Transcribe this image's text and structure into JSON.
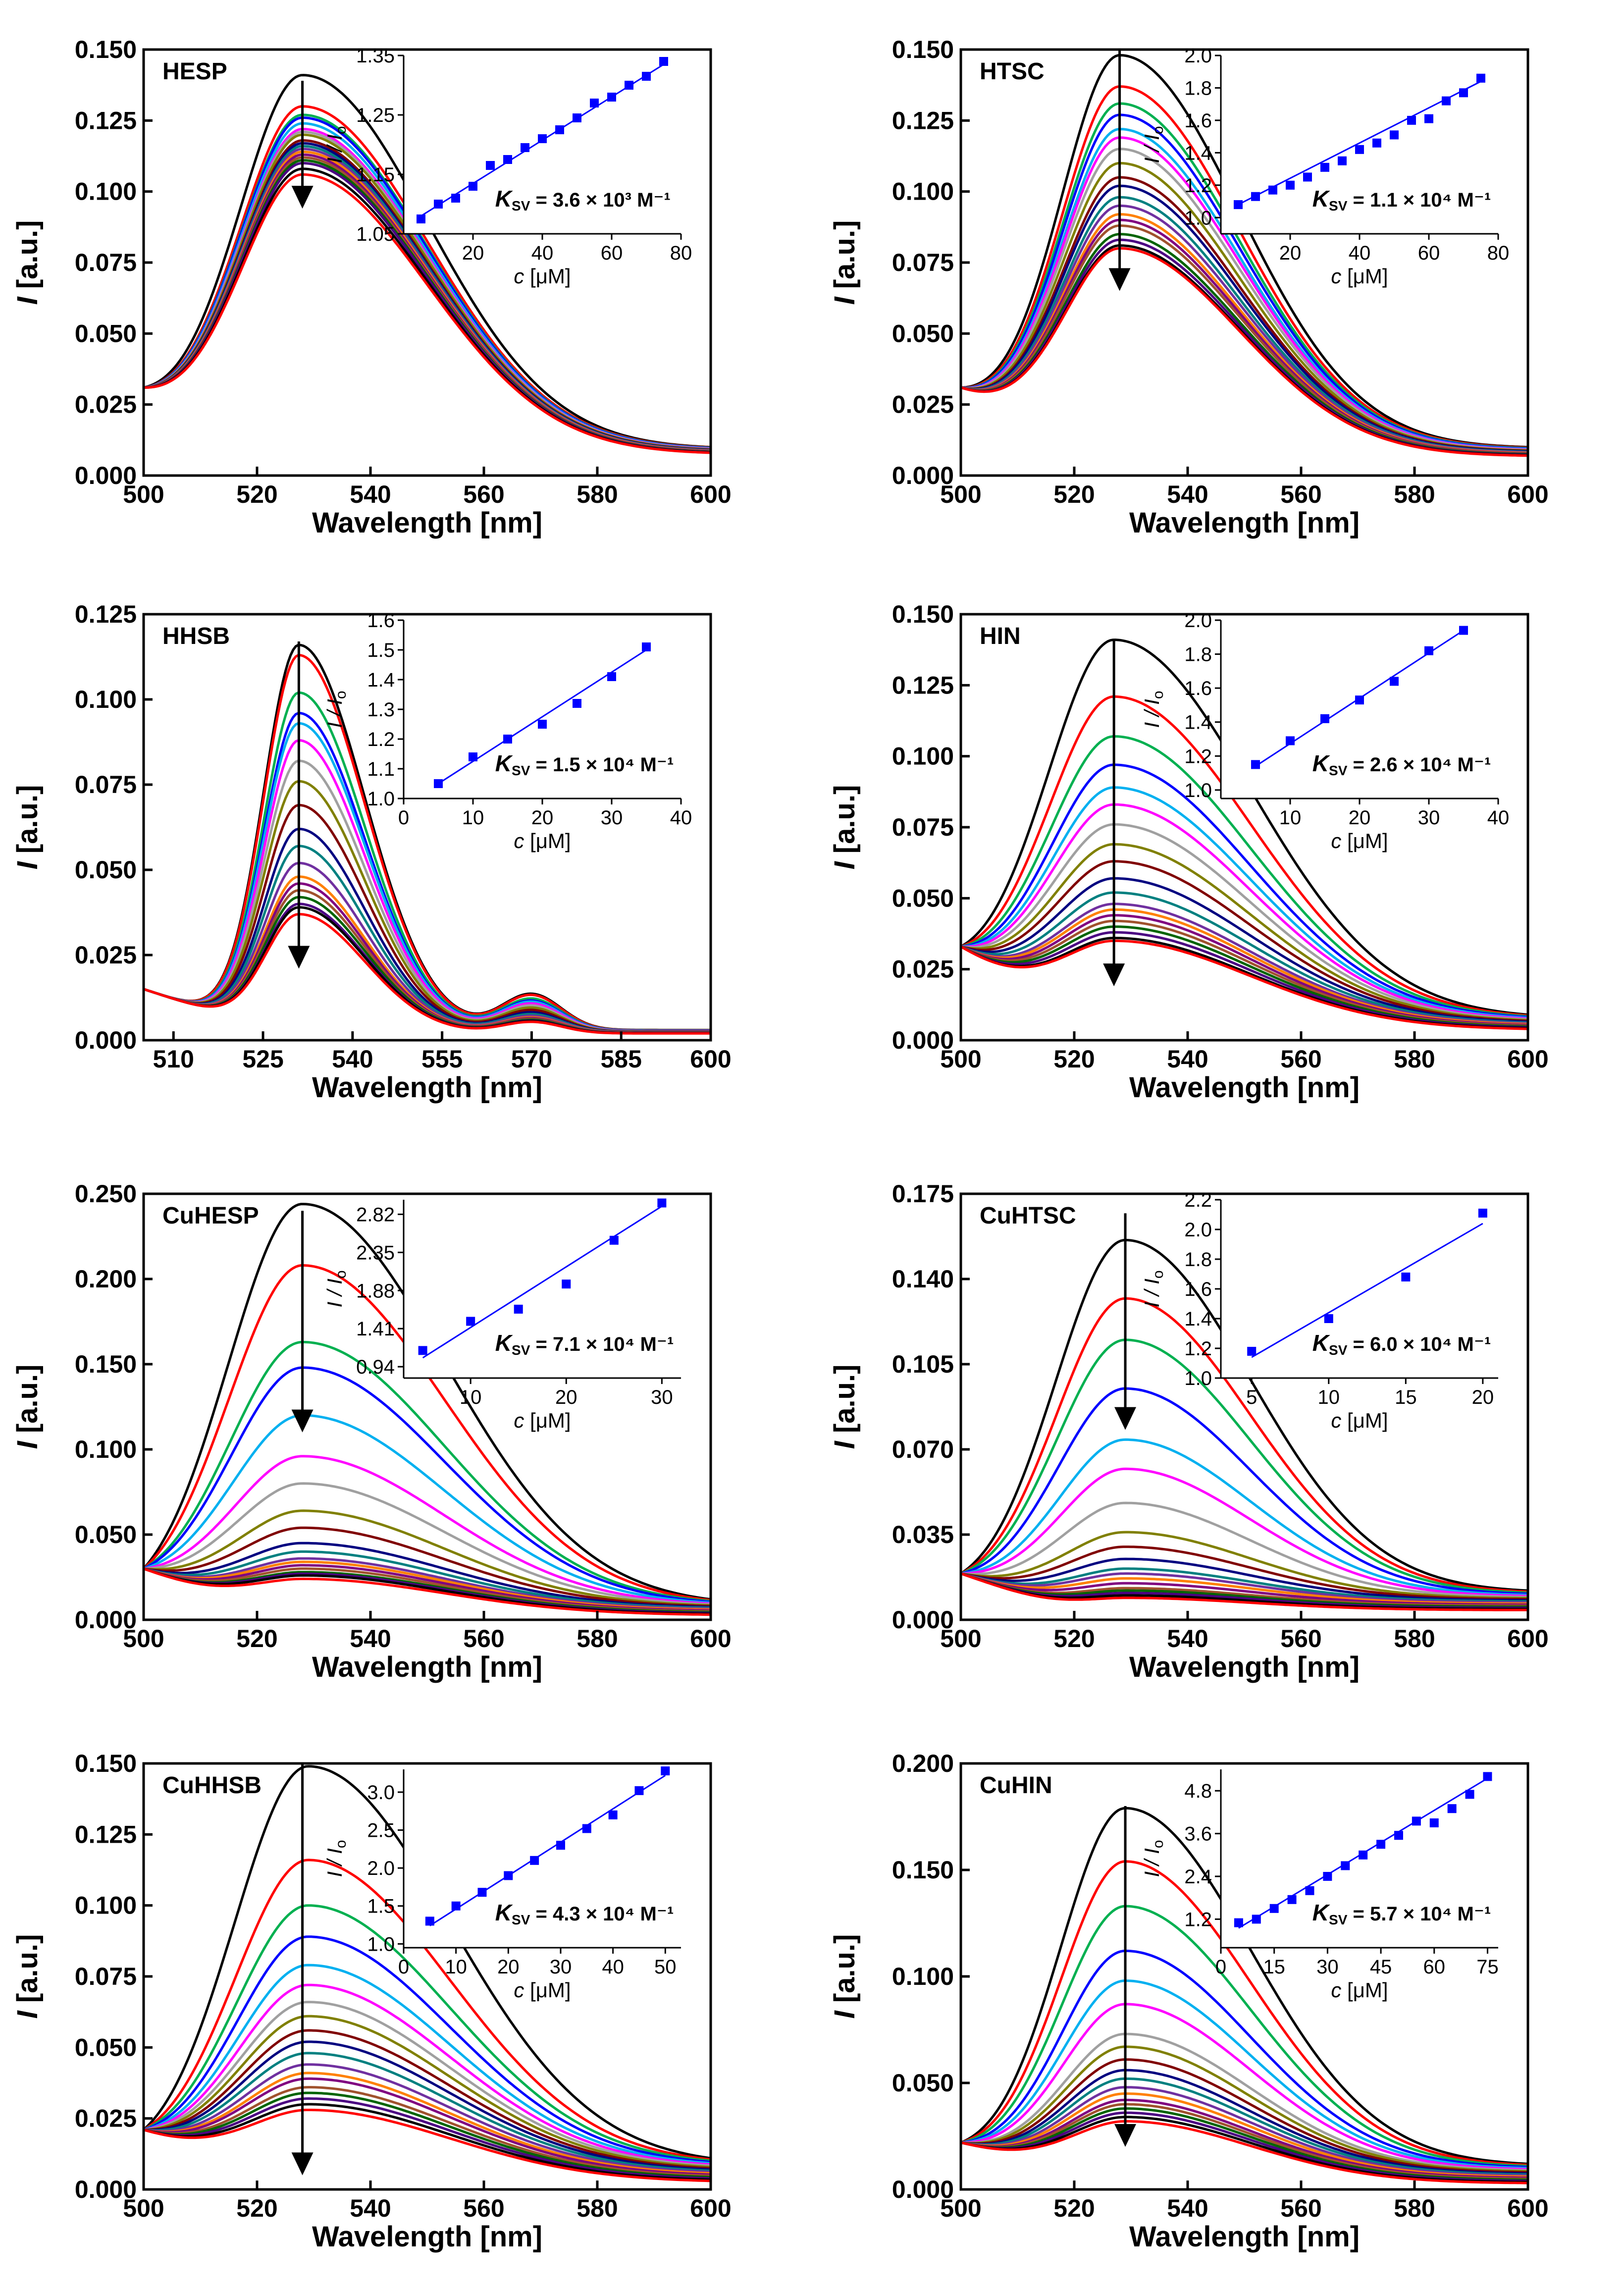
{
  "figure": {
    "xlabel": "Wavelength [nm]",
    "ylabel_symbol": "I",
    "ylabel_unit": " [a.u.]",
    "inset_xlabel_symbol": "c",
    "inset_xlabel_unit": " [μM]",
    "inset_ylabel": "I / I",
    "inset_ylabel_sub": "o",
    "ksv_symbol": "K",
    "ksv_sub": "SV",
    "colors": [
      "#000000",
      "#ff0000",
      "#00b050",
      "#0000ff",
      "#00b0f0",
      "#ff00ff",
      "#a0a0a0",
      "#808000",
      "#800000",
      "#000080",
      "#008080",
      "#7030a0",
      "#ff8000",
      "#800080",
      "#a0522d",
      "#006400",
      "#4b0082",
      "#000000",
      "#ff0000"
    ]
  },
  "chart_data": [
    {
      "type": "line",
      "title": "HESP",
      "xlabel": "Wavelength [nm]",
      "ylabel": "I [a.u.]",
      "xlim": [
        500,
        600
      ],
      "xticks": [
        500,
        520,
        540,
        560,
        580,
        600
      ],
      "xtick_labels": [
        "500",
        "520",
        "540",
        "560",
        "580",
        "600"
      ],
      "ylim": [
        0,
        0.15
      ],
      "yticks": [
        0,
        0.025,
        0.05,
        0.075,
        0.1,
        0.125,
        0.15
      ],
      "ytick_labels": [
        "0.000",
        "0.025",
        "0.050",
        "0.075",
        "0.100",
        "0.125",
        "0.150"
      ],
      "peak_nm": 528,
      "width_left": 12,
      "width_right": 22,
      "start": 0.031,
      "end_min": 0.008,
      "end_max": 0.01,
      "peaks": [
        0.141,
        0.13,
        0.127,
        0.126,
        0.124,
        0.122,
        0.121,
        0.12,
        0.118,
        0.117,
        0.116,
        0.115,
        0.114,
        0.113,
        0.112,
        0.111,
        0.11,
        0.108,
        0.106
      ],
      "arrow_nm": 528,
      "arrow_top": 0.139,
      "arrow_bottom": 0.094,
      "inset": {
        "type": "scatter",
        "xlim": [
          0,
          80
        ],
        "xticks": [
          20,
          40,
          60,
          80
        ],
        "xtick_labels": [
          "20",
          "40",
          "60",
          "80"
        ],
        "ylim": [
          1.05,
          1.35
        ],
        "yticks": [
          1.05,
          1.15,
          1.25,
          1.35
        ],
        "ytick_labels": [
          "1.05",
          "1.15",
          "1.25",
          "1.35"
        ],
        "x": [
          5,
          10,
          15,
          20,
          25,
          30,
          35,
          40,
          45,
          50,
          55,
          60,
          65,
          70,
          75
        ],
        "y": [
          1.075,
          1.1,
          1.11,
          1.13,
          1.165,
          1.175,
          1.195,
          1.21,
          1.225,
          1.245,
          1.27,
          1.28,
          1.3,
          1.315,
          1.34
        ],
        "fit": [
          [
            5,
            1.08
          ],
          [
            75,
            1.335
          ]
        ],
        "ksv_text": "= 3.6 × 10³ M⁻¹"
      }
    },
    {
      "type": "line",
      "title": "HTSC",
      "xlabel": "Wavelength [nm]",
      "ylabel": "I [a.u.]",
      "xlim": [
        500,
        600
      ],
      "xticks": [
        500,
        520,
        540,
        560,
        580,
        600
      ],
      "xtick_labels": [
        "500",
        "520",
        "540",
        "560",
        "580",
        "600"
      ],
      "ylim": [
        0,
        0.15
      ],
      "yticks": [
        0,
        0.025,
        0.05,
        0.075,
        0.1,
        0.125,
        0.15
      ],
      "ytick_labels": [
        "0.000",
        "0.025",
        "0.050",
        "0.075",
        "0.100",
        "0.125",
        "0.150"
      ],
      "peak_nm": 528,
      "width_left": 11,
      "width_right": 21,
      "start": 0.031,
      "end_min": 0.007,
      "end_max": 0.01,
      "peaks": [
        0.148,
        0.137,
        0.131,
        0.127,
        0.122,
        0.119,
        0.115,
        0.11,
        0.105,
        0.102,
        0.098,
        0.095,
        0.092,
        0.09,
        0.088,
        0.085,
        0.083,
        0.081,
        0.08
      ],
      "arrow_nm": 528,
      "arrow_top": 0.15,
      "arrow_bottom": 0.065,
      "inset": {
        "type": "scatter",
        "xlim": [
          0,
          80
        ],
        "xticks": [
          20,
          40,
          60,
          80
        ],
        "xtick_labels": [
          "20",
          "40",
          "60",
          "80"
        ],
        "ylim": [
          0.9,
          2.0
        ],
        "yticks": [
          1.0,
          1.2,
          1.4,
          1.6,
          1.8,
          2.0
        ],
        "ytick_labels": [
          "1.0",
          "1.2",
          "1.4",
          "1.6",
          "1.8",
          "2.0"
        ],
        "x": [
          5,
          10,
          15,
          20,
          25,
          30,
          35,
          40,
          45,
          50,
          55,
          60,
          65,
          70,
          75
        ],
        "y": [
          1.08,
          1.13,
          1.17,
          1.2,
          1.25,
          1.31,
          1.35,
          1.42,
          1.46,
          1.51,
          1.6,
          1.61,
          1.72,
          1.77,
          1.86
        ],
        "fit": [
          [
            5,
            1.08
          ],
          [
            75,
            1.84
          ]
        ],
        "ksv_text": "= 1.1 × 10⁴ M⁻¹"
      }
    },
    {
      "type": "line",
      "title": "HHSB",
      "xlabel": "Wavelength [nm]",
      "ylabel": "I [a.u.]",
      "xlim": [
        505,
        600
      ],
      "xticks": [
        510,
        525,
        540,
        555,
        570,
        585,
        600
      ],
      "xtick_labels": [
        "510",
        "525",
        "540",
        "555",
        "570",
        "585",
        "600"
      ],
      "ylim": [
        0,
        0.125
      ],
      "yticks": [
        0,
        0.025,
        0.05,
        0.075,
        0.1,
        0.125
      ],
      "ytick_labels": [
        "0.000",
        "0.025",
        "0.050",
        "0.075",
        "0.100",
        "0.125"
      ],
      "peak_nm": 531,
      "width_left": 6,
      "width_right": 11,
      "start": 0.015,
      "end_min": 0.002,
      "end_max": 0.003,
      "shoulder_nm": 570,
      "shoulder_width": 5,
      "shoulder_frac": 0.09,
      "peaks": [
        0.116,
        0.113,
        0.102,
        0.096,
        0.093,
        0.088,
        0.082,
        0.076,
        0.069,
        0.062,
        0.057,
        0.052,
        0.048,
        0.046,
        0.044,
        0.042,
        0.04,
        0.039,
        0.037
      ],
      "arrow_nm": 531,
      "arrow_top": 0.117,
      "arrow_bottom": 0.021,
      "inset": {
        "type": "scatter",
        "xlim": [
          0,
          40
        ],
        "xticks": [
          0,
          10,
          20,
          30,
          40
        ],
        "xtick_labels": [
          "0",
          "10",
          "20",
          "30",
          "40"
        ],
        "ylim": [
          1.0,
          1.6
        ],
        "yticks": [
          1.0,
          1.1,
          1.2,
          1.3,
          1.4,
          1.5,
          1.6
        ],
        "ytick_labels": [
          "1.0",
          "1.1",
          "1.2",
          "1.3",
          "1.4",
          "1.5",
          "1.6"
        ],
        "x": [
          5,
          10,
          15,
          20,
          25,
          30,
          35
        ],
        "y": [
          1.05,
          1.14,
          1.2,
          1.25,
          1.32,
          1.41,
          1.51
        ],
        "fit": [
          [
            5,
            1.05
          ],
          [
            35,
            1.5
          ]
        ],
        "ksv_text": "= 1.5 × 10⁴ M⁻¹"
      }
    },
    {
      "type": "line",
      "title": "HIN",
      "xlabel": "Wavelength [nm]",
      "ylabel": "I [a.u.]",
      "xlim": [
        500,
        600
      ],
      "xticks": [
        500,
        520,
        540,
        560,
        580,
        600
      ],
      "xtick_labels": [
        "500",
        "520",
        "540",
        "560",
        "580",
        "600"
      ],
      "ylim": [
        0,
        0.15
      ],
      "yticks": [
        0,
        0.025,
        0.05,
        0.075,
        0.1,
        0.125,
        0.15
      ],
      "ytick_labels": [
        "0.000",
        "0.025",
        "0.050",
        "0.075",
        "0.100",
        "0.125",
        "0.150"
      ],
      "peak_nm": 527,
      "width_left": 13,
      "width_right": 24,
      "start": 0.033,
      "end_min": 0.004,
      "end_max": 0.009,
      "peaks": [
        0.141,
        0.121,
        0.107,
        0.097,
        0.089,
        0.083,
        0.076,
        0.069,
        0.063,
        0.057,
        0.052,
        0.048,
        0.046,
        0.044,
        0.042,
        0.04,
        0.038,
        0.036,
        0.035
      ],
      "arrow_nm": 527,
      "arrow_top": 0.141,
      "arrow_bottom": 0.019,
      "inset": {
        "type": "scatter",
        "xlim": [
          0,
          40
        ],
        "xticks": [
          10,
          20,
          30,
          40
        ],
        "xtick_labels": [
          "10",
          "20",
          "30",
          "40"
        ],
        "ylim": [
          0.95,
          2.0
        ],
        "yticks": [
          1.0,
          1.2,
          1.4,
          1.6,
          1.8,
          2.0
        ],
        "ytick_labels": [
          "1.0",
          "1.2",
          "1.4",
          "1.6",
          "1.8",
          "2.0"
        ],
        "x": [
          5,
          10,
          15,
          20,
          25,
          30,
          35
        ],
        "y": [
          1.15,
          1.29,
          1.42,
          1.53,
          1.64,
          1.82,
          1.94
        ],
        "fit": [
          [
            5,
            1.14
          ],
          [
            35,
            1.94
          ]
        ],
        "ksv_text": "= 2.6 × 10⁴ M⁻¹"
      }
    },
    {
      "type": "line",
      "title": "CuHESP",
      "xlabel": "Wavelength [nm]",
      "ylabel": "I [a.u.]",
      "xlim": [
        500,
        600
      ],
      "xticks": [
        500,
        520,
        540,
        560,
        580,
        600
      ],
      "xtick_labels": [
        "500",
        "520",
        "540",
        "560",
        "580",
        "600"
      ],
      "ylim": [
        0,
        0.25
      ],
      "yticks": [
        0,
        0.05,
        0.1,
        0.15,
        0.2,
        0.25
      ],
      "ytick_labels": [
        "0.000",
        "0.050",
        "0.100",
        "0.150",
        "0.200",
        "0.250"
      ],
      "peak_nm": 528,
      "width_left": 14,
      "width_right": 25,
      "start": 0.03,
      "end_min": 0.003,
      "end_max": 0.012,
      "peaks": [
        0.244,
        0.208,
        0.163,
        0.148,
        0.12,
        0.096,
        0.08,
        0.064,
        0.054,
        0.045,
        0.04,
        0.036,
        0.034,
        0.032,
        0.03,
        0.028,
        0.027,
        0.026,
        0.024
      ],
      "arrow_nm": 528,
      "arrow_top": 0.24,
      "arrow_bottom": 0.11,
      "inset": {
        "type": "scatter",
        "xlim": [
          3,
          32
        ],
        "xticks": [
          10,
          20,
          30
        ],
        "xtick_labels": [
          "10",
          "20",
          "30"
        ],
        "ylim": [
          0.8,
          3.0
        ],
        "yticks": [
          0.94,
          1.41,
          1.88,
          2.35,
          2.82
        ],
        "ytick_labels": [
          "0.94",
          "1.41",
          "1.88",
          "2.35",
          "2.82"
        ],
        "x": [
          5,
          10,
          15,
          20,
          25,
          30
        ],
        "y": [
          1.14,
          1.5,
          1.65,
          1.96,
          2.5,
          2.96
        ],
        "fit": [
          [
            5,
            1.05
          ],
          [
            30,
            2.92
          ]
        ],
        "ksv_text": "= 7.1 × 10⁴ M⁻¹"
      }
    },
    {
      "type": "line",
      "title": "CuHTSC",
      "xlabel": "Wavelength [nm]",
      "ylabel": "I [a.u.]",
      "xlim": [
        500,
        600
      ],
      "xticks": [
        500,
        520,
        540,
        560,
        580,
        600
      ],
      "xtick_labels": [
        "500",
        "520",
        "540",
        "560",
        "580",
        "600"
      ],
      "ylim": [
        0,
        0.175
      ],
      "yticks": [
        0,
        0.035,
        0.07,
        0.105,
        0.14,
        0.175
      ],
      "ytick_labels": [
        "0.000",
        "0.035",
        "0.070",
        "0.105",
        "0.140",
        "0.175"
      ],
      "peak_nm": 529,
      "width_left": 13,
      "width_right": 22,
      "start": 0.019,
      "end_min": 0.004,
      "end_max": 0.012,
      "peaks": [
        0.156,
        0.132,
        0.115,
        0.095,
        0.074,
        0.062,
        0.048,
        0.036,
        0.03,
        0.025,
        0.021,
        0.019,
        0.017,
        0.015,
        0.013,
        0.012,
        0.011,
        0.01,
        0.009
      ],
      "arrow_nm": 529,
      "arrow_top": 0.167,
      "arrow_bottom": 0.078,
      "inset": {
        "type": "scatter",
        "xlim": [
          3,
          21
        ],
        "xticks": [
          5,
          10,
          15,
          20
        ],
        "xtick_labels": [
          "5",
          "10",
          "15",
          "20"
        ],
        "ylim": [
          1.0,
          2.2
        ],
        "yticks": [
          1.0,
          1.2,
          1.4,
          1.6,
          1.8,
          2.0,
          2.2
        ],
        "ytick_labels": [
          "1.0",
          "1.2",
          "1.4",
          "1.6",
          "1.8",
          "2.0",
          "2.2"
        ],
        "x": [
          5,
          10,
          15,
          20
        ],
        "y": [
          1.18,
          1.4,
          1.68,
          2.11
        ],
        "fit": [
          [
            5,
            1.14
          ],
          [
            20,
            2.04
          ]
        ],
        "ksv_text": "= 6.0 × 10⁴ M⁻¹"
      }
    },
    {
      "type": "line",
      "title": "CuHHSB",
      "xlabel": "Wavelength [nm]",
      "ylabel": "I [a.u.]",
      "xlim": [
        500,
        600
      ],
      "xticks": [
        500,
        520,
        540,
        560,
        580,
        600
      ],
      "xtick_labels": [
        "500",
        "520",
        "540",
        "560",
        "580",
        "600"
      ],
      "ylim": [
        0,
        0.15
      ],
      "yticks": [
        0,
        0.025,
        0.05,
        0.075,
        0.1,
        0.125,
        0.15
      ],
      "ytick_labels": [
        "0.000",
        "0.025",
        "0.050",
        "0.075",
        "0.100",
        "0.125",
        "0.150"
      ],
      "peak_nm": 529,
      "width_left": 14,
      "width_right": 25,
      "start": 0.021,
      "end_min": 0.003,
      "end_max": 0.011,
      "peaks": [
        0.149,
        0.116,
        0.1,
        0.089,
        0.079,
        0.072,
        0.066,
        0.061,
        0.056,
        0.052,
        0.048,
        0.044,
        0.041,
        0.039,
        0.036,
        0.034,
        0.032,
        0.03,
        0.028
      ],
      "arrow_nm": 528,
      "arrow_top": 0.15,
      "arrow_bottom": 0.005,
      "inset": {
        "type": "scatter",
        "xlim": [
          0,
          53
        ],
        "xticks": [
          0,
          10,
          20,
          30,
          40,
          50
        ],
        "xtick_labels": [
          "0",
          "10",
          "20",
          "30",
          "40",
          "50"
        ],
        "ylim": [
          0.95,
          3.3
        ],
        "yticks": [
          1.0,
          1.5,
          2.0,
          2.5,
          3.0
        ],
        "ytick_labels": [
          "1.0",
          "1.5",
          "2.0",
          "2.5",
          "3.0"
        ],
        "x": [
          5,
          10,
          15,
          20,
          25,
          30,
          35,
          40,
          45,
          50
        ],
        "y": [
          1.3,
          1.5,
          1.68,
          1.9,
          2.1,
          2.3,
          2.52,
          2.7,
          3.02,
          3.28
        ],
        "fit": [
          [
            5,
            1.24
          ],
          [
            50,
            3.22
          ]
        ],
        "ksv_text": "= 4.3 × 10⁴ M⁻¹"
      }
    },
    {
      "type": "line",
      "title": "CuHIN",
      "xlabel": "Wavelength [nm]",
      "ylabel": "I [a.u.]",
      "xlim": [
        500,
        600
      ],
      "xticks": [
        500,
        520,
        540,
        560,
        580,
        600
      ],
      "xtick_labels": [
        "500",
        "520",
        "540",
        "560",
        "580",
        "600"
      ],
      "ylim": [
        0,
        0.2
      ],
      "yticks": [
        0,
        0.05,
        0.1,
        0.15,
        0.2
      ],
      "ytick_labels": [
        "0.000",
        "0.050",
        "0.100",
        "0.150",
        "0.200"
      ],
      "peak_nm": 529,
      "width_left": 12,
      "width_right": 22,
      "start": 0.022,
      "end_min": 0.003,
      "end_max": 0.012,
      "peaks": [
        0.179,
        0.154,
        0.133,
        0.112,
        0.098,
        0.087,
        0.073,
        0.067,
        0.061,
        0.056,
        0.052,
        0.048,
        0.045,
        0.042,
        0.04,
        0.038,
        0.036,
        0.034,
        0.032
      ],
      "arrow_nm": 529,
      "arrow_top": 0.18,
      "arrow_bottom": 0.02,
      "inset": {
        "type": "scatter",
        "xlim": [
          0,
          78
        ],
        "xticks": [
          0,
          15,
          30,
          45,
          60,
          75
        ],
        "xtick_labels": [
          "0",
          "15",
          "30",
          "45",
          "60",
          "75"
        ],
        "ylim": [
          0.4,
          5.4
        ],
        "yticks": [
          1.2,
          2.4,
          3.6,
          4.8
        ],
        "ytick_labels": [
          "1.2",
          "2.4",
          "3.6",
          "4.8"
        ],
        "x": [
          5,
          10,
          15,
          20,
          25,
          30,
          35,
          40,
          45,
          50,
          55,
          60,
          65,
          70,
          75
        ],
        "y": [
          1.1,
          1.2,
          1.5,
          1.75,
          2.0,
          2.4,
          2.7,
          3.0,
          3.3,
          3.55,
          3.95,
          3.9,
          4.3,
          4.7,
          5.2
        ],
        "fit": [
          [
            5,
            0.95
          ],
          [
            75,
            5.15
          ]
        ],
        "ksv_text": "= 5.7 × 10⁴ M⁻¹"
      }
    }
  ]
}
